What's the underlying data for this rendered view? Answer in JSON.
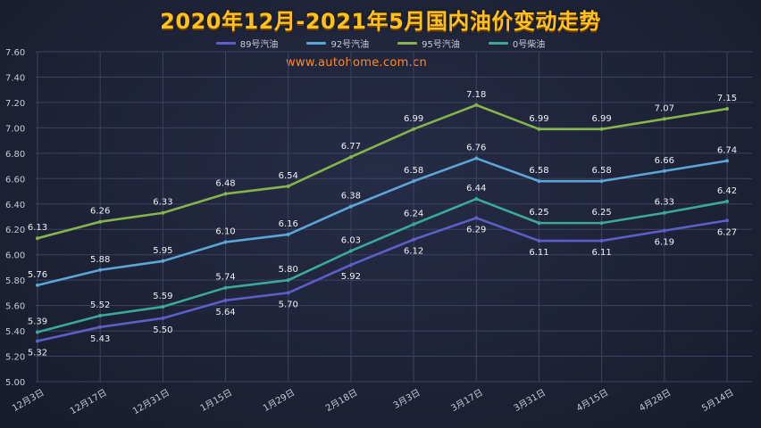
{
  "chart_data": {
    "type": "line",
    "title": "2020年12月-2021年5月国内油价变动走势",
    "watermark": "www.autohome.com.cn",
    "categories": [
      "12月3日",
      "12月17日",
      "12月31日",
      "1月15日",
      "1月29日",
      "2月18日",
      "3月3日",
      "3月17日",
      "3月31日",
      "4月15日",
      "4月28日",
      "5月14日"
    ],
    "ylim": [
      5.0,
      7.6
    ],
    "ytick_step": 0.2,
    "grid": true,
    "legend_position": "top",
    "series": [
      {
        "name": "89号汽油",
        "color": "#5b5fc7",
        "values": [
          5.32,
          5.43,
          5.5,
          5.64,
          5.7,
          5.92,
          6.12,
          6.29,
          6.11,
          6.11,
          6.19,
          6.27
        ]
      },
      {
        "name": "92号汽油",
        "color": "#5aa6d6",
        "values": [
          5.76,
          5.88,
          5.95,
          6.1,
          6.16,
          6.38,
          6.58,
          6.76,
          6.58,
          6.58,
          6.66,
          6.74
        ]
      },
      {
        "name": "95号汽油",
        "color": "#86b34a",
        "values": [
          6.13,
          6.26,
          6.33,
          6.48,
          6.54,
          6.77,
          6.99,
          7.18,
          6.99,
          6.99,
          7.07,
          7.15
        ]
      },
      {
        "name": "0号柴油",
        "color": "#3aa89a",
        "values": [
          5.39,
          5.52,
          5.59,
          5.74,
          5.8,
          6.03,
          6.24,
          6.44,
          6.25,
          6.25,
          6.33,
          6.42
        ]
      }
    ]
  }
}
